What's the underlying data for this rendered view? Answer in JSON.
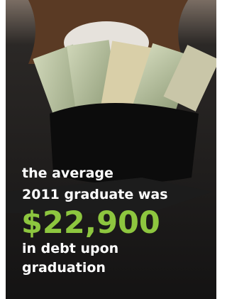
{
  "caption": {
    "lines": [
      "the average",
      "2011 graduate was"
    ],
    "amount": "$22,900",
    "tail": [
      "in debt upon",
      "graduation"
    ]
  }
}
